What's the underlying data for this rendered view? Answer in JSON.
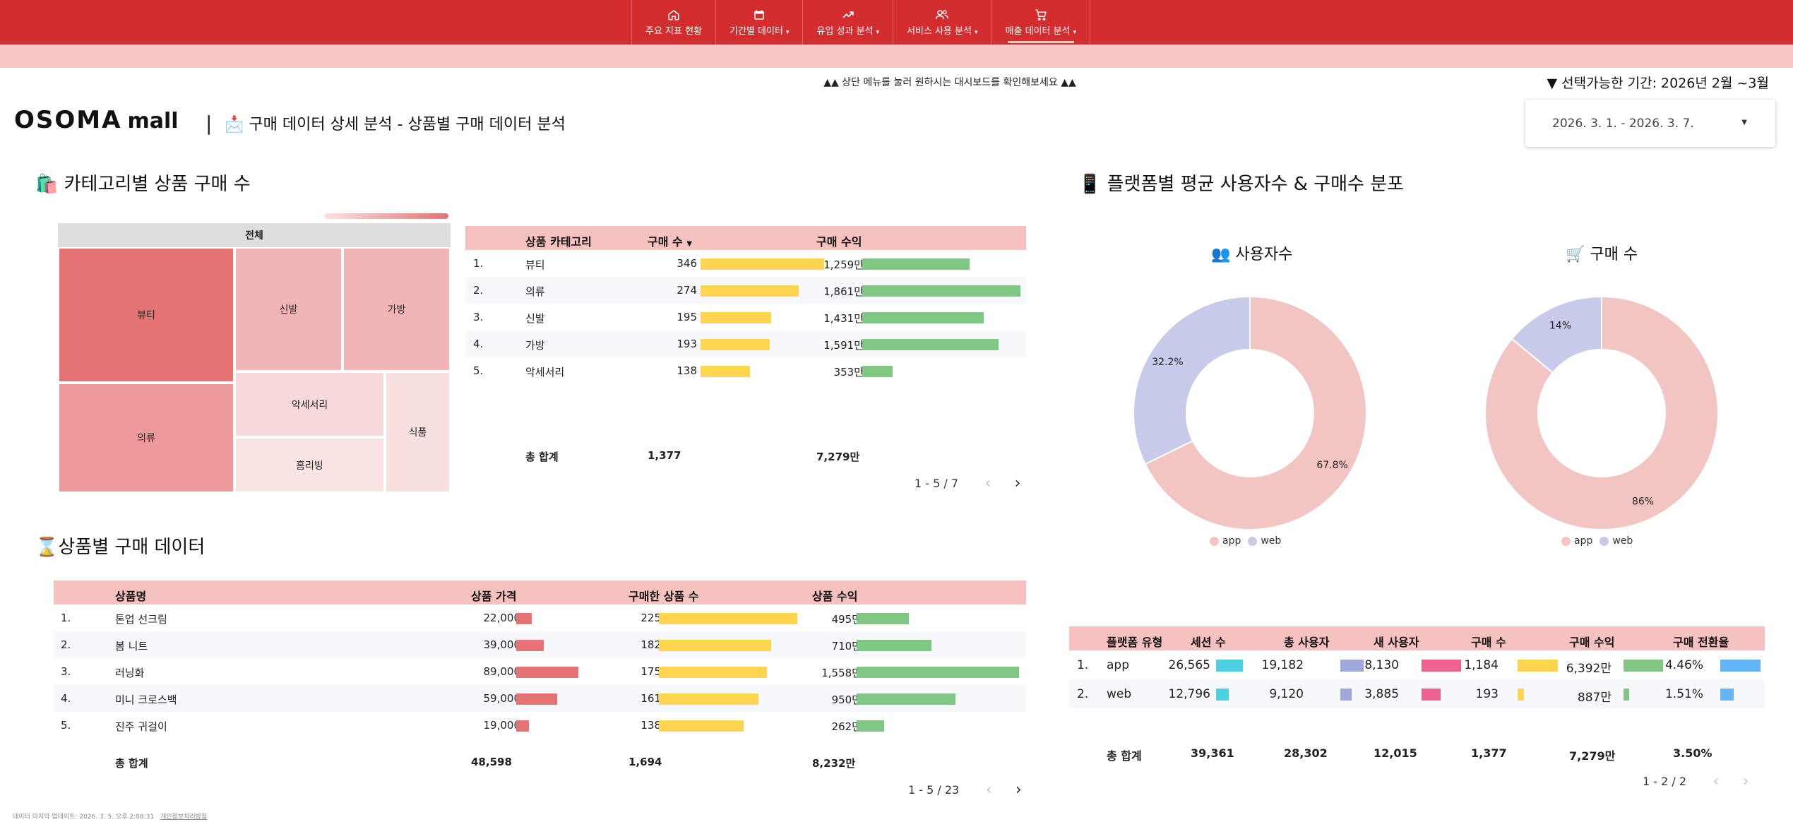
{
  "nav": {
    "items": [
      {
        "label": "주요 지표 현황",
        "icon": "home-icon",
        "caret": ""
      },
      {
        "label": "기간별 데이터",
        "icon": "calendar-icon",
        "caret": "▾"
      },
      {
        "label": "유입 성과 분석",
        "icon": "trending-up-icon",
        "caret": "▾"
      },
      {
        "label": "서비스 사용 분석",
        "icon": "users-icon",
        "caret": "▾"
      },
      {
        "label": "매출 데이터 분석",
        "icon": "cart-icon",
        "caret": "▾",
        "active": true
      }
    ]
  },
  "hint": "▲▲ 상단 메뉴를 눌러 원하시는 대시보드를 확인해보세요 ▲▲",
  "period": "▼ 선택가능한 기간: 2026년 2월 ~3월",
  "logo": {
    "main": "OSOMA",
    "sub": "mall"
  },
  "header": {
    "divider": "|",
    "title": "📩 구매 데이터 상세 분석 - 상품별 구매 데이터 분석"
  },
  "datepicker": {
    "value": "2026. 3. 1. - 2026. 3. 7.",
    "caret": "▼"
  },
  "sections": {
    "category": "🛍️ 카테고리별 상품 구매 수",
    "platform": "📱 플랫폼별 평균 사용자수 & 구매수 분포",
    "product": "⌛상품별 구매 데이터"
  },
  "treemap": {
    "header": "전체",
    "cells": [
      {
        "label": "뷰티",
        "color": "#e57373"
      },
      {
        "label": "신발",
        "color": "#f2b5b5"
      },
      {
        "label": "가방",
        "color": "#f2b5b5"
      },
      {
        "label": "의류",
        "color": "#ef9a9a"
      },
      {
        "label": "악세서리",
        "color": "#f8d9d9"
      },
      {
        "label": "식품",
        "color": "#f9e0e0"
      },
      {
        "label": "홈리빙",
        "color": "#fae3e3"
      }
    ]
  },
  "category_table": {
    "headers": [
      "상품 카테고리",
      "구매 수",
      "구매 수익"
    ],
    "sort_icon": "▼",
    "rows": [
      {
        "rank": "1.",
        "name": "뷰티",
        "count": "346",
        "revenue": "1,259만",
        "count_frac": 0.93,
        "rev_frac": 0.68
      },
      {
        "rank": "2.",
        "name": "의류",
        "count": "274",
        "revenue": "1,861만",
        "count_frac": 0.74,
        "rev_frac": 1.0
      },
      {
        "rank": "3.",
        "name": "신발",
        "count": "195",
        "revenue": "1,431만",
        "count_frac": 0.53,
        "rev_frac": 0.77
      },
      {
        "rank": "4.",
        "name": "가방",
        "count": "193",
        "revenue": "1,591만",
        "count_frac": 0.52,
        "rev_frac": 0.86
      },
      {
        "rank": "5.",
        "name": "악세서리",
        "count": "138",
        "revenue": "353만",
        "count_frac": 0.37,
        "rev_frac": 0.19
      }
    ],
    "total_label": "총 합계",
    "total_count": "1,377",
    "total_revenue": "7,279만",
    "pager": "1 - 5 / 7"
  },
  "product_table": {
    "headers": [
      "상품명",
      "상품 가격",
      "구매한 상품 수",
      "상품 수익"
    ],
    "rows": [
      {
        "rank": "1.",
        "name": "톤업 선크림",
        "price": "22,000",
        "count": "225",
        "revenue": "495만",
        "price_frac": 0.25,
        "count_frac": 1.0,
        "rev_frac": 0.32
      },
      {
        "rank": "2.",
        "name": "봄 니트",
        "price": "39,000",
        "count": "182",
        "revenue": "710만",
        "price_frac": 0.44,
        "count_frac": 0.81,
        "rev_frac": 0.46
      },
      {
        "rank": "3.",
        "name": "러닝화",
        "price": "89,000",
        "count": "175",
        "revenue": "1,558만",
        "price_frac": 1.0,
        "count_frac": 0.78,
        "rev_frac": 1.0
      },
      {
        "rank": "4.",
        "name": "미니 크로스백",
        "price": "59,000",
        "count": "161",
        "revenue": "950만",
        "price_frac": 0.66,
        "count_frac": 0.72,
        "rev_frac": 0.61
      },
      {
        "rank": "5.",
        "name": "진주 귀걸이",
        "price": "19,000",
        "count": "138",
        "revenue": "262만",
        "price_frac": 0.21,
        "count_frac": 0.61,
        "rev_frac": 0.17
      }
    ],
    "total_label": "총 합계",
    "total_price": "48,598",
    "total_count": "1,694",
    "total_revenue": "8,232만",
    "pager": "1 - 5 / 23"
  },
  "donut_users": {
    "title": "👥 사용자수",
    "slices": [
      {
        "name": "app",
        "value": 67.8,
        "label": "67.8%"
      },
      {
        "name": "web",
        "value": 32.2,
        "label": "32.2%"
      }
    ]
  },
  "donut_purchases": {
    "title": "🛒 구매 수",
    "slices": [
      {
        "name": "app",
        "value": 86,
        "label": "86%"
      },
      {
        "name": "web",
        "value": 14,
        "label": "14%"
      }
    ]
  },
  "legend": {
    "app": "app",
    "web": "web"
  },
  "colors": {
    "app": "#f2c4c2",
    "web": "#c7cae9",
    "bar_yellow": "#ffd54f",
    "bar_green": "#81c784",
    "bar_red": "#e57373"
  },
  "platform_table": {
    "headers": [
      "플랫폼 유형",
      "세션 수",
      "총 사용자",
      "새 사용자",
      "구매 수",
      "구매 수익",
      "구매 전환율"
    ],
    "rows": [
      {
        "rank": "1.",
        "type": "app",
        "sessions": "26,565",
        "users": "19,182",
        "new_users": "8,130",
        "purchases": "1,184",
        "revenue": "6,392만",
        "conv": "4.46%",
        "fr": [
          1.0,
          1.0,
          1.0,
          1.0,
          1.0,
          1.0
        ]
      },
      {
        "rank": "2.",
        "type": "web",
        "sessions": "12,796",
        "users": "9,120",
        "new_users": "3,885",
        "purchases": "193",
        "revenue": "887만",
        "conv": "1.51%",
        "fr": [
          0.48,
          0.48,
          0.48,
          0.16,
          0.14,
          0.34
        ]
      }
    ],
    "total_label": "총 합계",
    "totals": [
      "39,361",
      "28,302",
      "12,015",
      "1,377",
      "7,279만",
      "3.50%"
    ],
    "pager": "1 - 2 / 2",
    "bar_colors": [
      "#4dd0e1",
      "#9fa8da",
      "#f06292",
      "#ffd54f",
      "#81c784",
      "#64b5f6"
    ]
  },
  "footer": {
    "updated": "데이터 마지막 업데이트: 2026. 3. 5. 오후 2:08:31",
    "privacy": "개인정보처리방침"
  }
}
